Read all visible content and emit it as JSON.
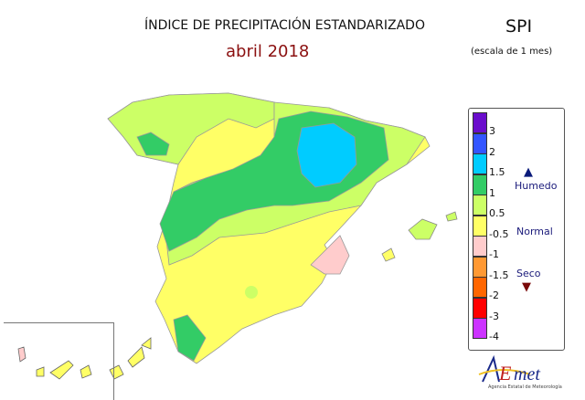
{
  "header": {
    "title": "ÍNDICE DE PRECIPITACIÓN ESTANDARIZADO",
    "subtitle": "abril 2018",
    "index": "SPI",
    "scale": "(escala de 1 mes)"
  },
  "legend": {
    "swatches": [
      {
        "color": "#6a0dcc"
      },
      {
        "color": "#3355ff"
      },
      {
        "color": "#00ccff"
      },
      {
        "color": "#33cc66"
      },
      {
        "color": "#ccff66"
      },
      {
        "color": "#ffff66"
      },
      {
        "color": "#ffcccc"
      },
      {
        "color": "#ff9933"
      },
      {
        "color": "#ff6600"
      },
      {
        "color": "#ff0000"
      },
      {
        "color": "#cc33ff"
      }
    ],
    "labels": [
      "3",
      "2",
      "1.5",
      "1",
      "0.5",
      "-0.5",
      "-1",
      "-1.5",
      "-2",
      "-3",
      "-4"
    ],
    "wet": "Humedo",
    "normal": "Normal",
    "dry": "Seco"
  },
  "logo": {
    "text": "AEMet",
    "subtext": "Agencia Estatal de Meteorología"
  }
}
